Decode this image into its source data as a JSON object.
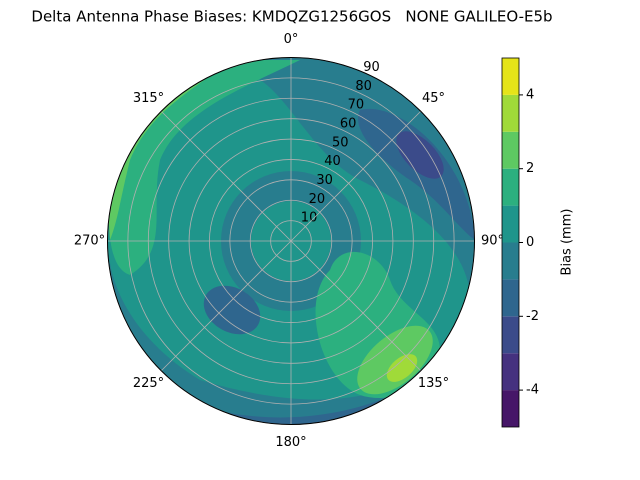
{
  "chart_data": {
    "type": "polar-contour",
    "title": "Delta Antenna Phase Biases: KMDQZG1256GOS   NONE GALILEO-E5b",
    "rlim": [
      0,
      90
    ],
    "rticks": [
      10,
      20,
      30,
      40,
      50,
      60,
      70,
      80,
      90
    ],
    "thetaticks": [
      {
        "value": 0,
        "label": "0°"
      },
      {
        "value": 45,
        "label": "45°"
      },
      {
        "value": 90,
        "label": "90°"
      },
      {
        "value": 135,
        "label": "135°"
      },
      {
        "value": 180,
        "label": "180°"
      },
      {
        "value": 225,
        "label": "225°"
      },
      {
        "value": 270,
        "label": "270°"
      },
      {
        "value": 315,
        "label": "315°"
      }
    ],
    "grid": true,
    "colorbar_label": "Bias (mm)",
    "clim": [
      -5,
      5
    ],
    "cticks": [
      -4,
      -2,
      0,
      2,
      4
    ],
    "levels": [
      -5,
      -4,
      -3,
      -2,
      -1,
      0,
      1,
      2,
      3,
      4,
      5
    ],
    "colors": [
      "#461668",
      "#45317f",
      "#3b4b8a",
      "#2f668e",
      "#287d8e",
      "#1f958b",
      "#2cb07f",
      "#5ec962",
      "#a0da39",
      "#e5e419"
    ]
  }
}
